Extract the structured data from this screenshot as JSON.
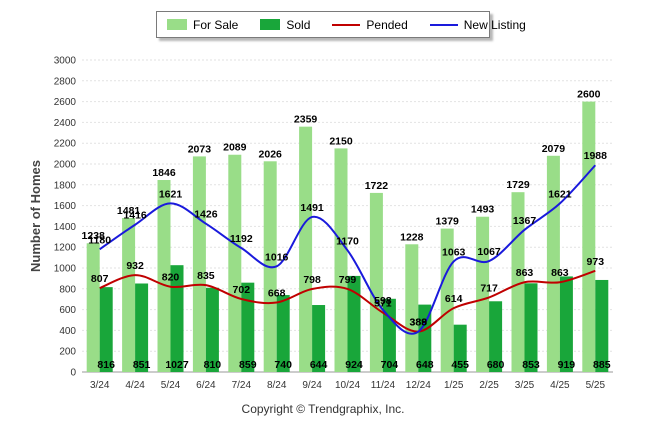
{
  "chart_data": {
    "type": "bar",
    "ylabel": "Number of Homes",
    "ylim": [
      0,
      3000
    ],
    "yticks": [
      0,
      200,
      400,
      600,
      800,
      1000,
      1200,
      1400,
      1600,
      1800,
      2000,
      2200,
      2400,
      2600,
      2800,
      3000
    ],
    "grid": true,
    "legend_position": "top-center",
    "categories": [
      "3/24",
      "4/24",
      "5/24",
      "6/24",
      "7/24",
      "8/24",
      "9/24",
      "10/24",
      "11/24",
      "12/24",
      "1/25",
      "2/25",
      "3/25",
      "4/25",
      "5/25"
    ],
    "series": [
      {
        "name": "For Sale",
        "type": "bar",
        "color": "#99dd88",
        "values": [
          1238,
          1481,
          1846,
          2073,
          2089,
          2026,
          2359,
          2150,
          1722,
          1228,
          1379,
          1493,
          1729,
          2079,
          2600
        ]
      },
      {
        "name": "Sold",
        "type": "bar",
        "color": "#19a63a",
        "values": [
          816,
          851,
          1027,
          810,
          859,
          740,
          644,
          924,
          704,
          648,
          455,
          680,
          853,
          919,
          885
        ]
      },
      {
        "name": "Pended",
        "type": "line",
        "color": "#c00000",
        "values": [
          807,
          932,
          820,
          835,
          702,
          668,
          798,
          799,
          571,
          389,
          614,
          717,
          863,
          863,
          973
        ]
      },
      {
        "name": "New Listing",
        "type": "line",
        "color": "#1a1adc",
        "values": [
          1180,
          1416,
          1621,
          1426,
          1192,
          1016,
          1491,
          1170,
          598,
          388,
          1063,
          1067,
          1367,
          1621,
          1988
        ]
      }
    ]
  },
  "copyright": "Copyright © Trendgraphix, Inc."
}
